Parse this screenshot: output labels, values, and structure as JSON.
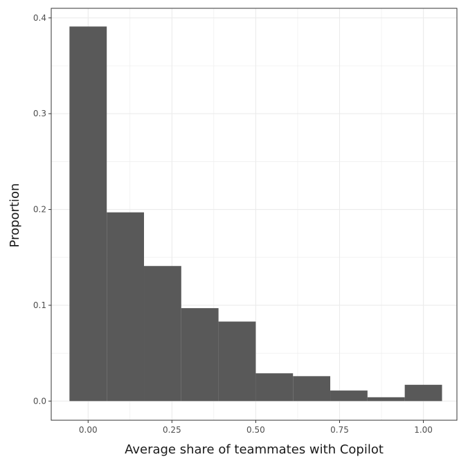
{
  "chart_data": {
    "type": "bar",
    "title": "",
    "xlabel": "Average share of teammates with Copilot",
    "ylabel": "Proportion",
    "bin_width": 0.1111,
    "bins": [
      {
        "x_start": -0.0556,
        "x_end": 0.0556,
        "value": 0.391
      },
      {
        "x_start": 0.0556,
        "x_end": 0.1667,
        "value": 0.197
      },
      {
        "x_start": 0.1667,
        "x_end": 0.2778,
        "value": 0.141
      },
      {
        "x_start": 0.2778,
        "x_end": 0.3889,
        "value": 0.097
      },
      {
        "x_start": 0.3889,
        "x_end": 0.5,
        "value": 0.083
      },
      {
        "x_start": 0.5,
        "x_end": 0.6111,
        "value": 0.029
      },
      {
        "x_start": 0.6111,
        "x_end": 0.7222,
        "value": 0.026
      },
      {
        "x_start": 0.7222,
        "x_end": 0.8333,
        "value": 0.011
      },
      {
        "x_start": 0.8333,
        "x_end": 0.9444,
        "value": 0.004
      },
      {
        "x_start": 0.9444,
        "x_end": 1.0556,
        "value": 0.017
      }
    ],
    "xlim": [
      -0.11,
      1.1
    ],
    "ylim": [
      -0.02,
      0.41
    ],
    "x_ticks": [
      {
        "value": 0.0,
        "label": "0.00"
      },
      {
        "value": 0.25,
        "label": "0.25"
      },
      {
        "value": 0.5,
        "label": "0.50"
      },
      {
        "value": 0.75,
        "label": "0.75"
      },
      {
        "value": 1.0,
        "label": "1.00"
      }
    ],
    "y_ticks": [
      {
        "value": 0.0,
        "label": "0.0"
      },
      {
        "value": 0.1,
        "label": "0.1"
      },
      {
        "value": 0.2,
        "label": "0.2"
      },
      {
        "value": 0.3,
        "label": "0.3"
      },
      {
        "value": 0.4,
        "label": "0.4"
      }
    ],
    "grid": true,
    "legend": "none",
    "bar_color": "#595959",
    "grid_color": "#ebebeb",
    "panel_border_color": "#333333"
  }
}
